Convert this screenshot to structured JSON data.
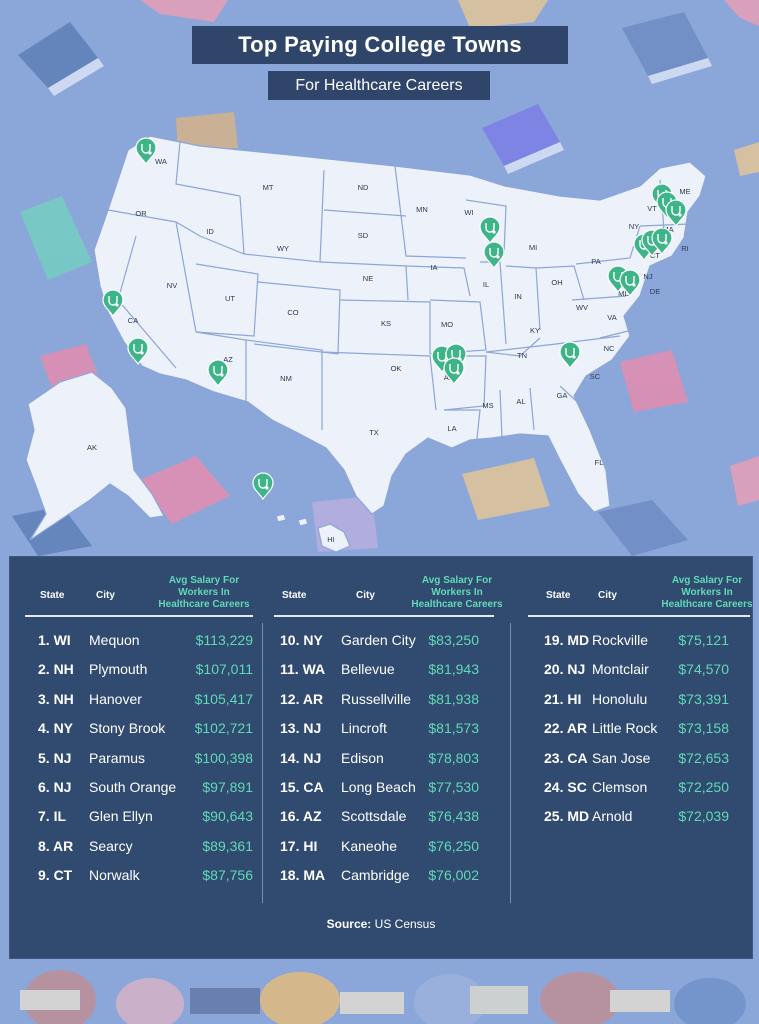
{
  "header": {
    "title": "Top Paying College Towns",
    "subtitle": "For Healthcare Careers"
  },
  "map": {
    "state_labels": [
      "WA",
      "OR",
      "CA",
      "NV",
      "ID",
      "MT",
      "WY",
      "UT",
      "AZ",
      "NM",
      "CO",
      "ND",
      "SD",
      "NE",
      "KS",
      "OK",
      "TX",
      "MN",
      "IA",
      "MO",
      "AR",
      "LA",
      "WI",
      "IL",
      "MI",
      "IN",
      "OH",
      "KY",
      "TN",
      "MS",
      "AL",
      "GA",
      "FL",
      "SC",
      "NC",
      "VA",
      "WV",
      "PA",
      "NY",
      "VT",
      "ME",
      "MA",
      "RI",
      "CT",
      "NJ",
      "DE",
      "MD",
      "AK",
      "HI"
    ],
    "marker_icon": "stethoscope-pin-icon"
  },
  "table": {
    "headers": {
      "state": "State",
      "city": "City",
      "salary_line1": "Avg Salary For",
      "salary_line2": "Workers In",
      "salary_line3": "Healthcare Careers"
    },
    "columns": [
      [
        {
          "rank": "1. WI",
          "city": "Mequon",
          "salary": "$113,229"
        },
        {
          "rank": "2. NH",
          "city": "Plymouth",
          "salary": "$107,011"
        },
        {
          "rank": "3. NH",
          "city": "Hanover",
          "salary": "$105,417"
        },
        {
          "rank": "4. NY",
          "city": "Stony Brook",
          "salary": "$102,721"
        },
        {
          "rank": "5. NJ",
          "city": "Paramus",
          "salary": "$100,398"
        },
        {
          "rank": "6. NJ",
          "city": "South Orange",
          "salary": "$97,891"
        },
        {
          "rank": "7. IL",
          "city": "Glen Ellyn",
          "salary": "$90,643"
        },
        {
          "rank": "8. AR",
          "city": "Searcy",
          "salary": "$89,361"
        },
        {
          "rank": "9. CT",
          "city": "Norwalk",
          "salary": "$87,756"
        }
      ],
      [
        {
          "rank": "10. NY",
          "city": "Garden City",
          "salary": "$83,250"
        },
        {
          "rank": "11. WA",
          "city": "Bellevue",
          "salary": "$81,943"
        },
        {
          "rank": "12. AR",
          "city": "Russellville",
          "salary": "$81,938"
        },
        {
          "rank": "13. NJ",
          "city": "Lincroft",
          "salary": "$81,573"
        },
        {
          "rank": "14. NJ",
          "city": "Edison",
          "salary": "$78,803"
        },
        {
          "rank": "15. CA",
          "city": "Long Beach",
          "salary": "$77,530"
        },
        {
          "rank": "16. AZ",
          "city": "Scottsdale",
          "salary": "$76,438"
        },
        {
          "rank": "17. HI",
          "city": "Kaneohe",
          "salary": "$76,250"
        },
        {
          "rank": "18. MA",
          "city": "Cambridge",
          "salary": "$76,002"
        }
      ],
      [
        {
          "rank": "19. MD",
          "city": "Rockville",
          "salary": "$75,121"
        },
        {
          "rank": "20. NJ",
          "city": "Montclair",
          "salary": "$74,570"
        },
        {
          "rank": "21. HI",
          "city": "Honolulu",
          "salary": "$73,391"
        },
        {
          "rank": "22. AR",
          "city": "Little Rock",
          "salary": "$73,158"
        },
        {
          "rank": "23. CA",
          "city": "San Jose",
          "salary": "$72,653"
        },
        {
          "rank": "24. SC",
          "city": "Clemson",
          "salary": "$72,250"
        },
        {
          "rank": "25. MD",
          "city": "Arnold",
          "salary": "$72,039"
        }
      ]
    ]
  },
  "footer": {
    "source_label": "Source:",
    "source_value": "US Census"
  },
  "colors": {
    "background": "#8ba6d8",
    "panel": "#304a70",
    "accent": "#61d9b5",
    "map_land": "#edf1f9"
  }
}
